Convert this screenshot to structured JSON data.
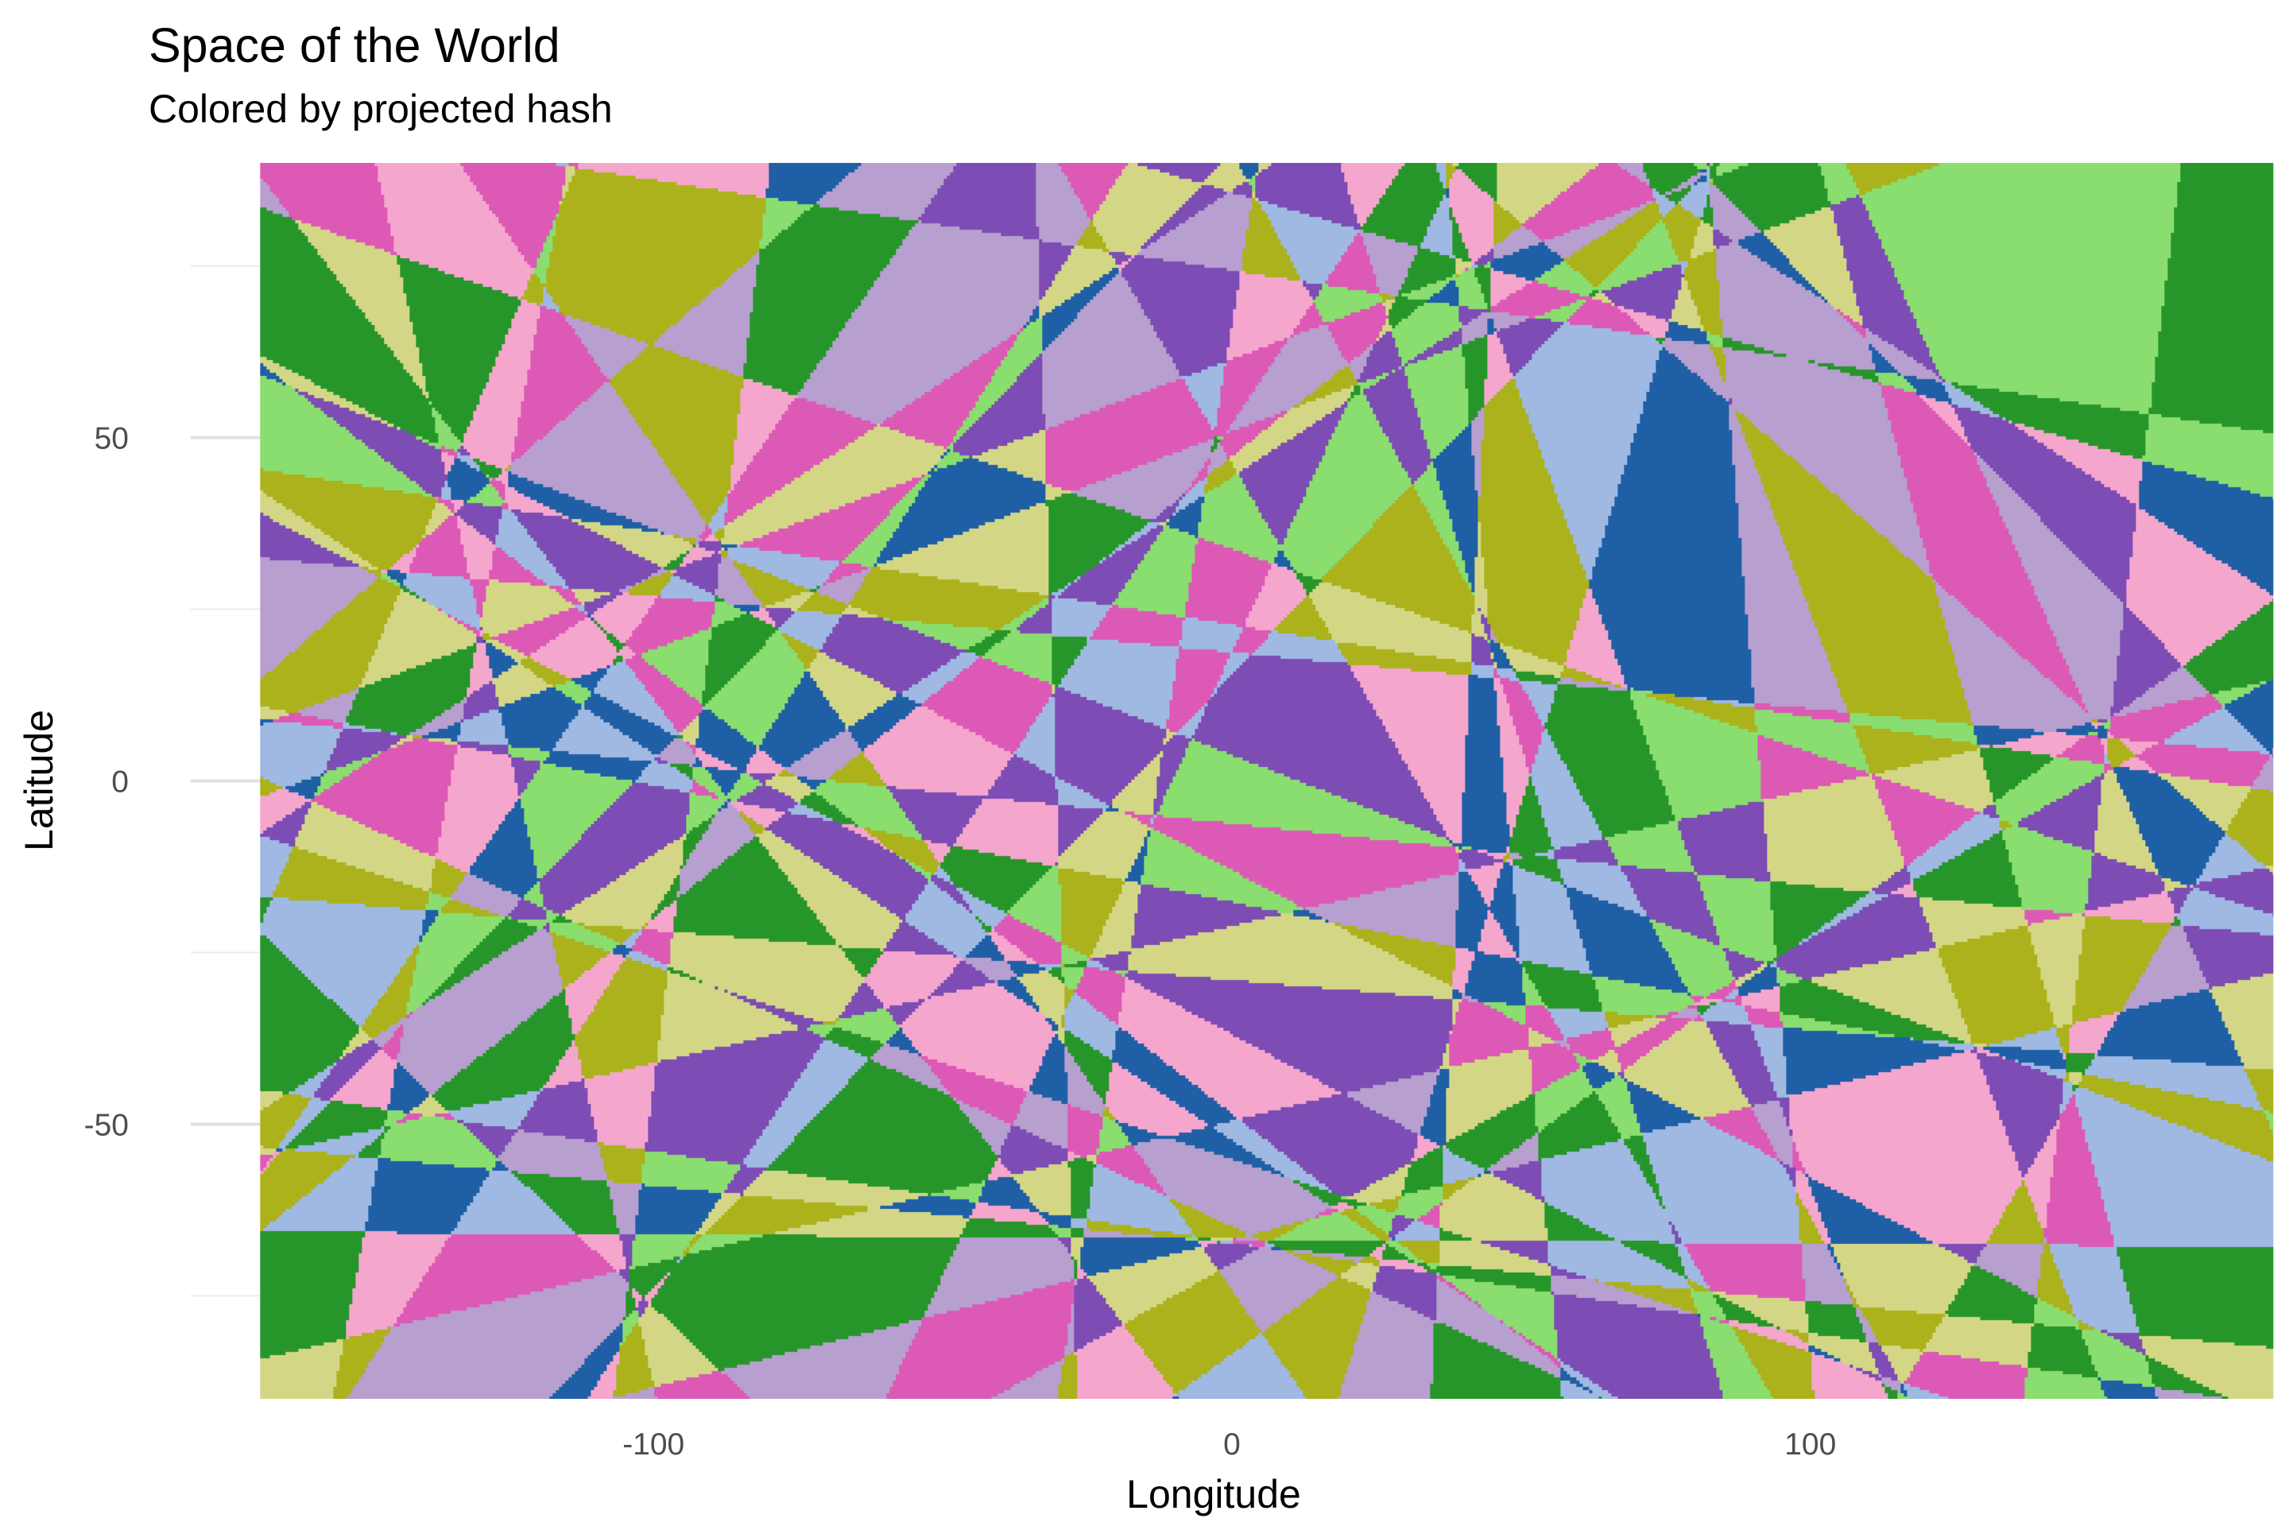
{
  "chart_data": {
    "type": "heatmap",
    "title": "Space of the World",
    "subtitle": "Colored by projected hash",
    "xlabel": "Longitude",
    "ylabel": "Latitude",
    "xlim": [
      -180,
      180
    ],
    "ylim": [
      -90,
      90
    ],
    "x_ticks": [
      -100,
      0,
      100
    ],
    "y_ticks": [
      50,
      0,
      -50
    ],
    "x_tick_labels": [
      "-100",
      "0",
      "100"
    ],
    "y_tick_labels": [
      "50",
      "0",
      "-50"
    ],
    "grid": true,
    "legend": "none",
    "palette": [
      "#1f5fa6",
      "#9fb9e3",
      "#ff6a12",
      "#ffab66",
      "#27962a",
      "#8add6f",
      "#cc1123",
      "#ff8885",
      "#7d4cb4",
      "#b79fd0",
      "#7a453c",
      "#bb8a84",
      "#dd59b6",
      "#f5a6cd",
      "#6e6e6e",
      "#bcbcbc",
      "#abb21c",
      "#d3d785",
      "#1eaec4",
      "#8fd3e2"
    ]
  }
}
